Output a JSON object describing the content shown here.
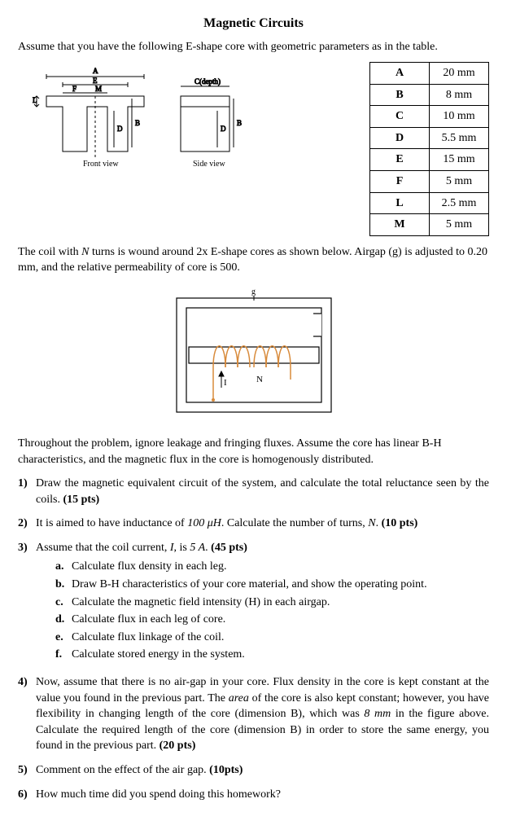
{
  "title": "Magnetic Circuits",
  "intro": "Assume that you have the following E-shape core with geometric parameters as in the table.",
  "params": [
    {
      "label": "A",
      "value": "20 mm"
    },
    {
      "label": "B",
      "value": "8 mm"
    },
    {
      "label": "C",
      "value": "10 mm"
    },
    {
      "label": "D",
      "value": "5.5 mm"
    },
    {
      "label": "E",
      "value": "15 mm"
    },
    {
      "label": "F",
      "value": "5 mm"
    },
    {
      "label": "L",
      "value": "2.5 mm"
    },
    {
      "label": "M",
      "value": "5 mm"
    }
  ],
  "frontview_label": "Front view",
  "sideview_label": "Side view",
  "depth_label": "C(depth)",
  "dim_A": "A",
  "dim_B": "B",
  "dim_D": "D",
  "dim_E": "E",
  "dim_F": "F",
  "dim_L": "L",
  "dim_M": "M",
  "para2_pre": "The coil with ",
  "para2_N": "N",
  "para2_mid": " turns is wound around 2x E-shape cores as shown below. Airgap (g) is adjusted to 0.20 mm, and the relative permeability of core is 500.",
  "coil_g": "g",
  "coil_I": "I",
  "coil_N": "N",
  "para3": "Throughout the problem, ignore leakage and fringing fluxes. Assume the core has linear B-H characteristics, and the magnetic flux in the core is homogenously distributed.",
  "q1_num": "1)",
  "q1_text": "Draw the magnetic equivalent circuit of the system, and calculate the total reluctance seen by the coils. ",
  "q1_pts": "(15 pts)",
  "q2_num": "2)",
  "q2_pre": "It is aimed to have inductance of ",
  "q2_val": "100 μH",
  "q2_mid": ". Calculate the number of turns, ",
  "q2_N": "N",
  "q2_post": ". ",
  "q2_pts": "(10 pts)",
  "q3_num": "3)",
  "q3_pre": "Assume that the coil current, ",
  "q3_I": "I",
  "q3_mid": ", is ",
  "q3_val": "5 A",
  "q3_post": ".   ",
  "q3_pts": "(45 pts)",
  "q3a_l": "a.",
  "q3a": "Calculate flux density in each leg.",
  "q3b_l": "b.",
  "q3b": "Draw B-H characteristics of your core material, and show the operating point.",
  "q3c_l": "c.",
  "q3c": "Calculate the magnetic field intensity (H) in each airgap.",
  "q3d_l": "d.",
  "q3d": "Calculate flux in each leg of core.",
  "q3e_l": "e.",
  "q3e": "Calculate flux linkage of the coil.",
  "q3f_l": "f.",
  "q3f": "Calculate stored energy in the system.",
  "q4_num": "4)",
  "q4_pre": "Now, assume that there is no air-gap in your core. Flux density in the core is kept constant at the value you found in the previous part. The ",
  "q4_area": "area",
  "q4_mid": " of the core is also kept constant; however, you have flexibility in changing length of the core (dimension B), which was ",
  "q4_dim": "8 mm",
  "q4_post": " in the figure above. Calculate the required length of the core (dimension B) in order to store the same energy, you found in the previous part. ",
  "q4_pts": "(20 pts)",
  "q5_num": "5)",
  "q5_text": "Comment on the effect of the air gap. ",
  "q5_pts": "(10pts)",
  "q6_num": "6)",
  "q6_text": "How much time did you spend doing this homework?",
  "colors": {
    "text": "#000000",
    "bg": "#ffffff",
    "coil": "#d88a3a",
    "wire": "#000000"
  }
}
